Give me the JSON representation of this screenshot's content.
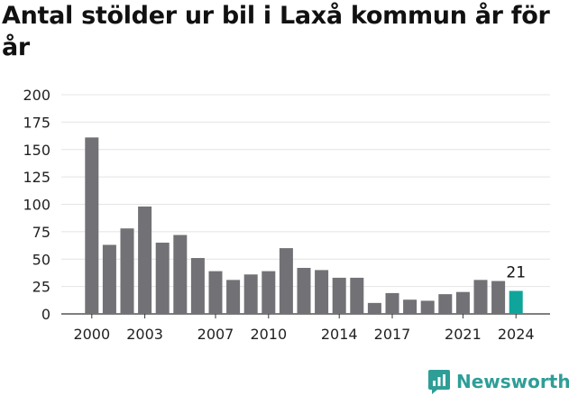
{
  "title": "Antal stölder ur bil i Laxå kommun år för år",
  "brand": {
    "name": "Newsworthy"
  },
  "colors": {
    "bar": "#717176",
    "highlight": "#10a59a",
    "grid": "#e4e4e4",
    "brand": "#2e9e97"
  },
  "chart_data": {
    "type": "bar",
    "title": "Antal stölder ur bil i Laxå kommun år för år",
    "xlabel": "",
    "ylabel": "",
    "ylim": [
      0,
      200
    ],
    "y_ticks": [
      0,
      25,
      50,
      75,
      100,
      125,
      150,
      175,
      200
    ],
    "x_tick_labels": [
      "2000",
      "2003",
      "2007",
      "2010",
      "2014",
      "2017",
      "2021",
      "2024"
    ],
    "categories": [
      2000,
      2001,
      2002,
      2003,
      2004,
      2005,
      2006,
      2007,
      2008,
      2009,
      2010,
      2011,
      2012,
      2013,
      2014,
      2015,
      2016,
      2017,
      2018,
      2019,
      2020,
      2021,
      2022,
      2023,
      2024
    ],
    "values": [
      161,
      63,
      78,
      98,
      65,
      72,
      51,
      39,
      31,
      36,
      39,
      60,
      42,
      40,
      33,
      33,
      10,
      19,
      13,
      12,
      18,
      20,
      31,
      30,
      21
    ],
    "highlight": {
      "category": 2024,
      "label": "21"
    },
    "grid": true
  }
}
